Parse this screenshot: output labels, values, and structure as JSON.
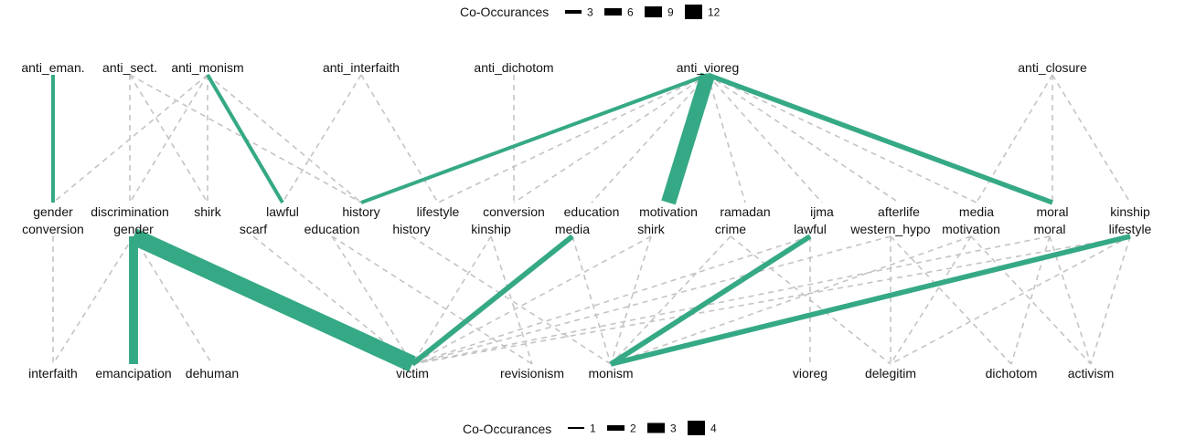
{
  "colors": {
    "strong_edge": "#35a985",
    "weak_edge": "#c4c4c4",
    "text": "#111111",
    "legend_mark": "#000000"
  },
  "legend_top": {
    "title": "Co-Occurances",
    "items": [
      "3",
      "6",
      "9",
      "12"
    ]
  },
  "legend_bottom": {
    "title": "Co-Occurances",
    "items": [
      "1",
      "2",
      "3",
      "4"
    ]
  },
  "upper_network": {
    "top_nodes": [
      "anti_eman.",
      "anti_sect.",
      "anti_monism",
      "anti_interfaith",
      "anti_dichotom",
      "anti_vioreg",
      "anti_closure"
    ],
    "bottom_nodes": [
      "gender",
      "discrimination",
      "shirk",
      "lawful",
      "history",
      "lifestyle",
      "conversion",
      "education",
      "motivation",
      "ramadan",
      "ijma",
      "afterlife",
      "media",
      "moral",
      "kinship"
    ],
    "edges": [
      {
        "from": "anti_eman.",
        "to": "gender",
        "weight": 3
      },
      {
        "from": "anti_monism",
        "to": "lawful",
        "weight": 3
      },
      {
        "from": "anti_vioreg",
        "to": "history",
        "weight": 3
      },
      {
        "from": "anti_vioreg",
        "to": "motivation",
        "weight": 12
      },
      {
        "from": "anti_vioreg",
        "to": "moral",
        "weight": 4
      },
      {
        "from": "anti_sect.",
        "to": "discrimination",
        "weight": 1
      },
      {
        "from": "anti_sect.",
        "to": "shirk",
        "weight": 1
      },
      {
        "from": "anti_sect.",
        "to": "history",
        "weight": 1
      },
      {
        "from": "anti_monism",
        "to": "gender",
        "weight": 1
      },
      {
        "from": "anti_monism",
        "to": "discrimination",
        "weight": 1
      },
      {
        "from": "anti_monism",
        "to": "shirk",
        "weight": 1
      },
      {
        "from": "anti_monism",
        "to": "history",
        "weight": 1
      },
      {
        "from": "anti_interfaith",
        "to": "lawful",
        "weight": 1
      },
      {
        "from": "anti_interfaith",
        "to": "lifestyle",
        "weight": 1
      },
      {
        "from": "anti_dichotom",
        "to": "conversion",
        "weight": 1
      },
      {
        "from": "anti_vioreg",
        "to": "lifestyle",
        "weight": 1
      },
      {
        "from": "anti_vioreg",
        "to": "conversion",
        "weight": 1
      },
      {
        "from": "anti_vioreg",
        "to": "education",
        "weight": 1
      },
      {
        "from": "anti_vioreg",
        "to": "ramadan",
        "weight": 1
      },
      {
        "from": "anti_vioreg",
        "to": "ijma",
        "weight": 1
      },
      {
        "from": "anti_vioreg",
        "to": "afterlife",
        "weight": 1
      },
      {
        "from": "anti_vioreg",
        "to": "media",
        "weight": 1
      },
      {
        "from": "anti_closure",
        "to": "media",
        "weight": 1
      },
      {
        "from": "anti_closure",
        "to": "moral",
        "weight": 1
      },
      {
        "from": "anti_closure",
        "to": "kinship",
        "weight": 1
      }
    ]
  },
  "lower_network": {
    "top_nodes": [
      "conversion",
      "gender",
      "scarf",
      "education",
      "history",
      "kinship",
      "media",
      "shirk",
      "crime",
      "lawful",
      "western_hypo",
      "motivation",
      "moral",
      "lifestyle"
    ],
    "bottom_nodes": [
      "interfaith",
      "emancipation",
      "dehuman",
      "victim",
      "revisionism",
      "monism",
      "vioreg",
      "delegitim",
      "dichotom",
      "activism"
    ],
    "edges": [
      {
        "from": "gender",
        "to": "emancipation",
        "weight": 2
      },
      {
        "from": "gender",
        "to": "victim",
        "weight": 4
      },
      {
        "from": "media",
        "to": "victim",
        "weight": 1
      },
      {
        "from": "lawful",
        "to": "monism",
        "weight": 1
      },
      {
        "from": "lifestyle",
        "to": "monism",
        "weight": 1
      },
      {
        "from": "conversion",
        "to": "interfaith",
        "weight": 1
      },
      {
        "from": "gender",
        "to": "interfaith",
        "weight": 1
      },
      {
        "from": "gender",
        "to": "dehuman",
        "weight": 1
      },
      {
        "from": "scarf",
        "to": "victim",
        "weight": 1
      },
      {
        "from": "education",
        "to": "victim",
        "weight": 1
      },
      {
        "from": "education",
        "to": "revisionism",
        "weight": 1
      },
      {
        "from": "history",
        "to": "monism",
        "weight": 1
      },
      {
        "from": "kinship",
        "to": "victim",
        "weight": 1
      },
      {
        "from": "kinship",
        "to": "revisionism",
        "weight": 1
      },
      {
        "from": "media",
        "to": "monism",
        "weight": 1
      },
      {
        "from": "shirk",
        "to": "monism",
        "weight": 1
      },
      {
        "from": "shirk",
        "to": "victim",
        "weight": 1
      },
      {
        "from": "crime",
        "to": "delegitim",
        "weight": 1
      },
      {
        "from": "crime",
        "to": "monism",
        "weight": 1
      },
      {
        "from": "lawful",
        "to": "victim",
        "weight": 1
      },
      {
        "from": "lawful",
        "to": "vioreg",
        "weight": 1
      },
      {
        "from": "western_hypo",
        "to": "delegitim",
        "weight": 1
      },
      {
        "from": "western_hypo",
        "to": "dichotom",
        "weight": 1
      },
      {
        "from": "western_hypo",
        "to": "victim",
        "weight": 1
      },
      {
        "from": "motivation",
        "to": "activism",
        "weight": 1
      },
      {
        "from": "motivation",
        "to": "delegitim",
        "weight": 1
      },
      {
        "from": "motivation",
        "to": "monism",
        "weight": 1
      },
      {
        "from": "moral",
        "to": "dichotom",
        "weight": 1
      },
      {
        "from": "moral",
        "to": "activism",
        "weight": 1
      },
      {
        "from": "moral",
        "to": "victim",
        "weight": 1
      },
      {
        "from": "lifestyle",
        "to": "delegitim",
        "weight": 1
      },
      {
        "from": "lifestyle",
        "to": "activism",
        "weight": 1
      },
      {
        "from": "lifestyle",
        "to": "victim",
        "weight": 1
      }
    ]
  }
}
